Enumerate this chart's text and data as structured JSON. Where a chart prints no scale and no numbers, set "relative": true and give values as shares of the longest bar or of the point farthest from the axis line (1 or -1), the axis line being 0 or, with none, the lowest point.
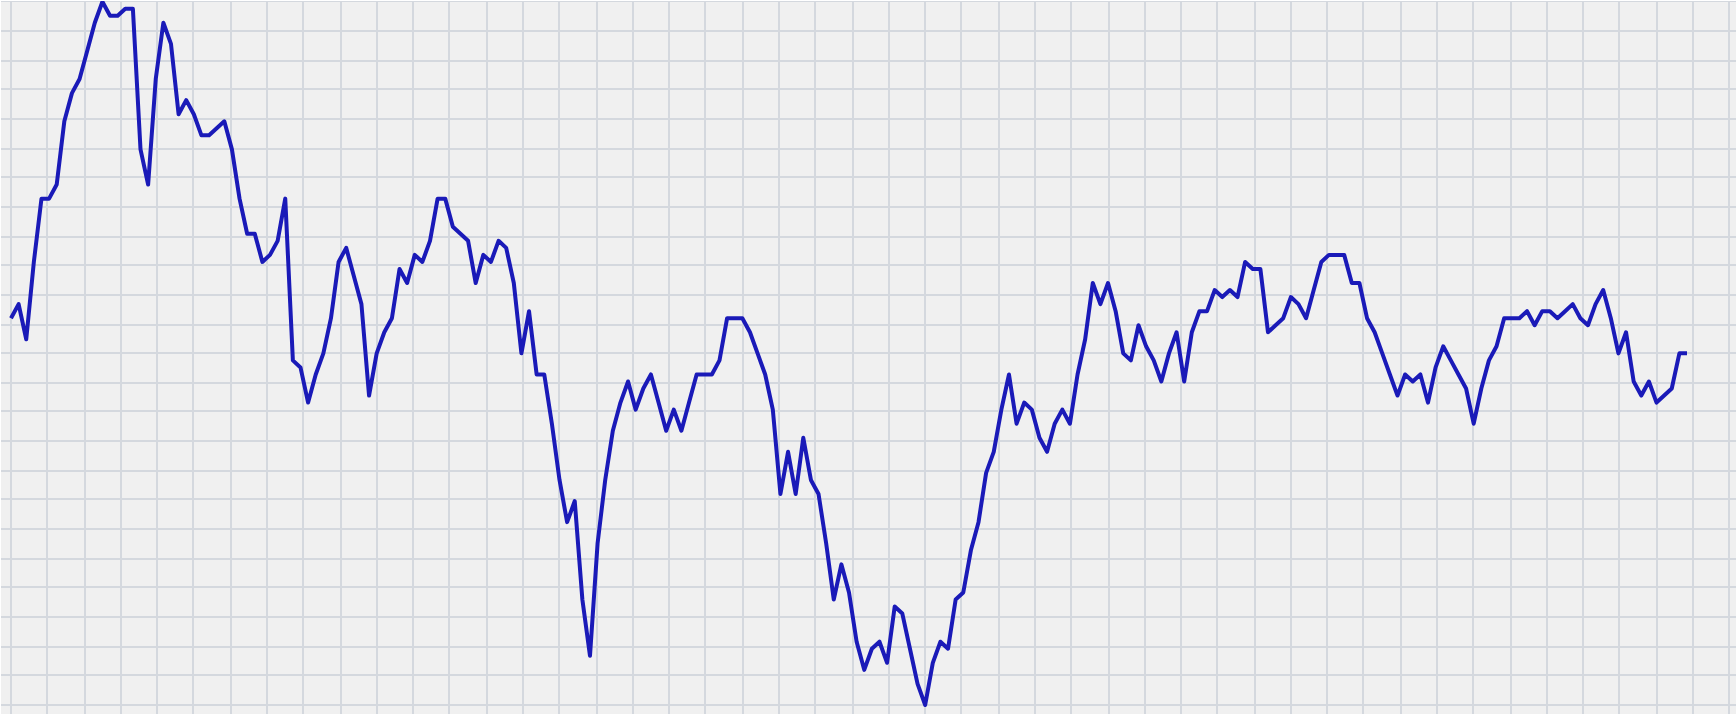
{
  "chart_data": {
    "type": "line",
    "relative": true,
    "grid": true,
    "categories": [
      null,
      null,
      null,
      null,
      null,
      null,
      null,
      null,
      null,
      null,
      null,
      null,
      null,
      null,
      null,
      null,
      null,
      null,
      null,
      null,
      null,
      null,
      null,
      null,
      null,
      null,
      null,
      null,
      null,
      null,
      null,
      null,
      null,
      null,
      null,
      null,
      null,
      null,
      null,
      null,
      null,
      null,
      null,
      null,
      null,
      null,
      null,
      null,
      null,
      null,
      null,
      null,
      null,
      null,
      null,
      null,
      null,
      null,
      null,
      null,
      null,
      null,
      null,
      null,
      null,
      null,
      null,
      null,
      null,
      null,
      null,
      null,
      null,
      null,
      null,
      null,
      null,
      null,
      null,
      null,
      null,
      null,
      null,
      null,
      null,
      null,
      null,
      null,
      null,
      null,
      null,
      null,
      null,
      null,
      null,
      null,
      null,
      null,
      null,
      null,
      null,
      null,
      null,
      null,
      null,
      null,
      null,
      null,
      null,
      null,
      null,
      null,
      null,
      null,
      null,
      null,
      null,
      null,
      null,
      null,
      null,
      null,
      null,
      null,
      null,
      null,
      null,
      null,
      null,
      null,
      null,
      null,
      null,
      null,
      null,
      null,
      null,
      null,
      null,
      null,
      null,
      null,
      null,
      null,
      null,
      null,
      null,
      null,
      null,
      null,
      null,
      null,
      null,
      null,
      null,
      null,
      null,
      null,
      null,
      null,
      null,
      null,
      null,
      null,
      null,
      null,
      null,
      null,
      null,
      null,
      null,
      null,
      null,
      null,
      null,
      null,
      null,
      null,
      null,
      null,
      null,
      null,
      null,
      null,
      null,
      null,
      null,
      null,
      null,
      null,
      null,
      null,
      null,
      null,
      null,
      null,
      null,
      null,
      null,
      null,
      null,
      null,
      null,
      null,
      null,
      null,
      null,
      null,
      null,
      null,
      null,
      null,
      null,
      null,
      null,
      null,
      null,
      null,
      null,
      null,
      null
    ],
    "series": [
      {
        "color": "#1a1ab8",
        "values": [
          0.55,
          0.57,
          0.52,
          0.63,
          0.72,
          0.72,
          0.74,
          0.83,
          0.87,
          0.89,
          0.93,
          0.97,
          1,
          0.98,
          0.98,
          0.99,
          0.99,
          0.79,
          0.74,
          0.89,
          0.97,
          0.94,
          0.84,
          0.86,
          0.84,
          0.81,
          0.81,
          0.82,
          0.83,
          0.79,
          0.72,
          0.67,
          0.67,
          0.63,
          0.64,
          0.66,
          0.72,
          0.49,
          0.48,
          0.43,
          0.47,
          0.5,
          0.55,
          0.63,
          0.65,
          0.61,
          0.57,
          0.44,
          0.5,
          0.53,
          0.55,
          0.62,
          0.6,
          0.64,
          0.63,
          0.66,
          0.72,
          0.72,
          0.68,
          0.67,
          0.66,
          0.6,
          0.64,
          0.63,
          0.66,
          0.65,
          0.6,
          0.5,
          0.56,
          0.47,
          0.47,
          0.4,
          0.32,
          0.26,
          0.29,
          0.15,
          0.07,
          0.23,
          0.32,
          0.39,
          0.43,
          0.46,
          0.42,
          0.45,
          0.47,
          0.43,
          0.39,
          0.42,
          0.39,
          0.43,
          0.47,
          0.47,
          0.47,
          0.49,
          0.55,
          0.55,
          0.55,
          0.53,
          0.5,
          0.47,
          0.42,
          0.3,
          0.36,
          0.3,
          0.38,
          0.32,
          0.3,
          0.23,
          0.15,
          0.2,
          0.16,
          0.09,
          0.05,
          0.08,
          0.09,
          0.06,
          0.14,
          0.13,
          0.08,
          0.03,
          0,
          0.06,
          0.09,
          0.08,
          0.15,
          0.16,
          0.22,
          0.26,
          0.33,
          0.36,
          0.42,
          0.47,
          0.4,
          0.43,
          0.42,
          0.38,
          0.36,
          0.4,
          0.42,
          0.4,
          0.47,
          0.52,
          0.6,
          0.57,
          0.6,
          0.56,
          0.5,
          0.49,
          0.54,
          0.51,
          0.49,
          0.46,
          0.5,
          0.53,
          0.46,
          0.53,
          0.56,
          0.56,
          0.59,
          0.58,
          0.59,
          0.58,
          0.63,
          0.62,
          0.62,
          0.53,
          0.54,
          0.55,
          0.58,
          0.57,
          0.55,
          0.59,
          0.63,
          0.64,
          0.64,
          0.64,
          0.6,
          0.6,
          0.55,
          0.53,
          0.5,
          0.47,
          0.44,
          0.47,
          0.46,
          0.47,
          0.43,
          0.48,
          0.51,
          0.49,
          0.47,
          0.45,
          0.4,
          0.45,
          0.49,
          0.51,
          0.55,
          0.55,
          0.55,
          0.56,
          0.54,
          0.56,
          0.56,
          0.55,
          0.56,
          0.57,
          0.55,
          0.54,
          0.57,
          0.59,
          0.55,
          0.5,
          0.53,
          0.46,
          0.44,
          0.46,
          0.43,
          0.44,
          0.45,
          0.5,
          0.5
        ]
      }
    ]
  }
}
